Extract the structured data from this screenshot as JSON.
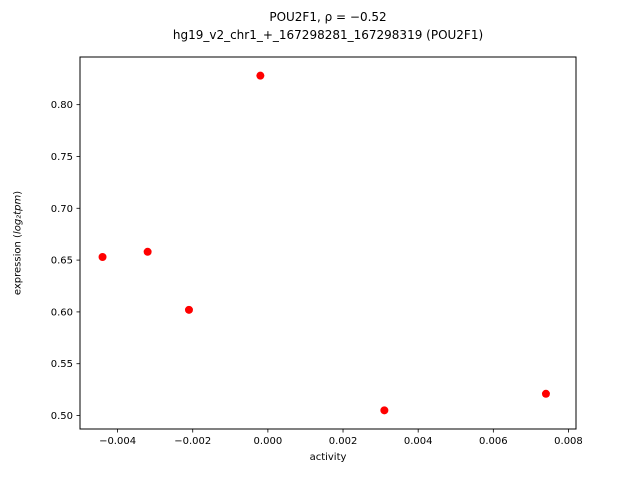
{
  "chart_data": {
    "type": "scatter",
    "title_line1": "POU2F1, ρ = −0.52",
    "title_line2": "hg19_v2_chr1_+_167298281_167298319 (POU2F1)",
    "xlabel": "activity",
    "ylabel_prefix": "expression (",
    "ylabel_math": "log₂tpm",
    "ylabel_suffix": ")",
    "xlim": [
      -0.005,
      0.0082
    ],
    "ylim": [
      0.487,
      0.846
    ],
    "xticks": [
      -0.004,
      -0.002,
      0.0,
      0.002,
      0.004,
      0.006,
      0.008
    ],
    "xtick_labels": [
      "−0.004",
      "−0.002",
      "0.000",
      "0.002",
      "0.004",
      "0.006",
      "0.008"
    ],
    "yticks": [
      0.5,
      0.55,
      0.6,
      0.65,
      0.7,
      0.75,
      0.8
    ],
    "ytick_labels": [
      "0.50",
      "0.55",
      "0.60",
      "0.65",
      "0.70",
      "0.75",
      "0.80"
    ],
    "marker_color": "#ff0000",
    "axis_color": "#000000",
    "points": [
      {
        "x": -0.0044,
        "y": 0.653
      },
      {
        "x": -0.0032,
        "y": 0.658
      },
      {
        "x": -0.0021,
        "y": 0.602
      },
      {
        "x": -0.0002,
        "y": 0.828
      },
      {
        "x": 0.0031,
        "y": 0.505
      },
      {
        "x": 0.0074,
        "y": 0.521
      }
    ]
  }
}
